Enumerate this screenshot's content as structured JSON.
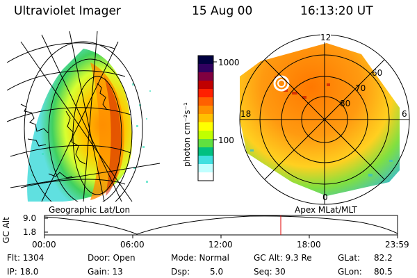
{
  "header": {
    "instrument": "Ultraviolet Imager",
    "date": "15 Aug 00",
    "time": "16:13:20 UT"
  },
  "colorbar": {
    "unit_label": "photon cm⁻²s⁻¹",
    "ticks": [
      "1000",
      "100"
    ],
    "colors": [
      "#000040",
      "#300060",
      "#800040",
      "#c00000",
      "#ff2000",
      "#ff6000",
      "#ff9000",
      "#ffc000",
      "#ffff00",
      "#c0ff00",
      "#60e040",
      "#00c080",
      "#40e0e0",
      "#c0ffff",
      "#ffffff"
    ]
  },
  "left_panel": {
    "caption": "Geographic Lat/Lon"
  },
  "right_panel": {
    "caption": "Apex MLat/MLT",
    "mlt_labels": {
      "top": "12",
      "left": "18",
      "right": "6",
      "bottom": "0"
    },
    "lat_labels": [
      "60",
      "70",
      "80"
    ]
  },
  "altitude_plot": {
    "ylabel": "GC Alt",
    "yticks": [
      "9.0",
      "1.8"
    ],
    "xticks": [
      "00:00",
      "06:00",
      "12:00",
      "18:00",
      "23:59"
    ]
  },
  "footer": {
    "flt": "Flt: 1304",
    "ip": "IP: 18.0",
    "door": "Door: Open",
    "gain": "Gain: 13",
    "mode": "Mode: Normal",
    "dsp_label": "Dsp:",
    "dsp_value": "5.0",
    "gc_alt": "GC Alt: 9.3 Re",
    "seq": "Seq: 30",
    "glat_label": "GLat:",
    "glat_value": "82.2",
    "glon_label": "GLon:",
    "glon_value": "80.5"
  }
}
